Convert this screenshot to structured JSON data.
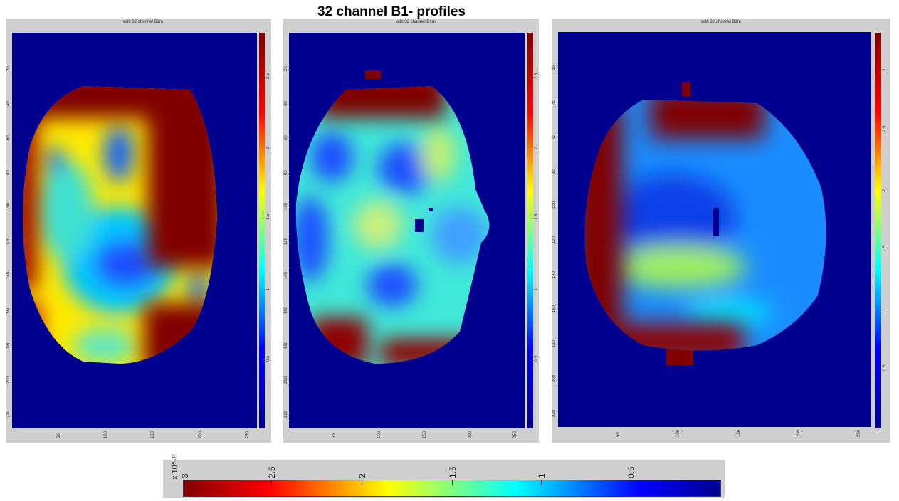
{
  "title": "32 channel B1- profiles",
  "panels": [
    {
      "name": "left",
      "title": "with 32 channel B1m",
      "x_ticks": [
        "50",
        "100",
        "150",
        "200",
        "250"
      ],
      "y_ticks": [
        "20",
        "40",
        "60",
        "80",
        "100",
        "120",
        "140",
        "160",
        "180",
        "200",
        "220"
      ],
      "cbar_ticks": [
        "0.5",
        "1",
        "1.5",
        "2",
        "2.5"
      ],
      "cbar_exp": "x 10^-8"
    },
    {
      "name": "middle",
      "title": "with 32 channel B1m",
      "x_ticks": [
        "50",
        "100",
        "150",
        "200",
        "250"
      ],
      "y_ticks": [
        "20",
        "40",
        "60",
        "80",
        "100",
        "120",
        "140",
        "160",
        "180",
        "200",
        "220"
      ],
      "cbar_ticks": [
        "0.5",
        "1",
        "1.5",
        "2",
        "2.5"
      ],
      "cbar_exp": "x 10^-8"
    },
    {
      "name": "right",
      "title": "with 32 channel B1m",
      "x_ticks": [
        "50",
        "100",
        "150",
        "200",
        "250"
      ],
      "y_ticks": [
        "20",
        "40",
        "60",
        "80",
        "100",
        "120",
        "140",
        "160",
        "180",
        "200",
        "220"
      ],
      "cbar_ticks": [
        "0.5",
        "1",
        "1.5",
        "2",
        "2.5",
        "3"
      ],
      "cbar_exp": "x 10^-8"
    }
  ],
  "colorbar": {
    "exponent": "x 10^-8",
    "tick_labels": [
      "3",
      "2.5",
      "2",
      "1.5",
      "1",
      "0.5"
    ],
    "range": [
      3,
      0
    ],
    "colormap": "jet (dark red at 3 to dark blue at 0)"
  },
  "colors": {
    "background_map": "#00008f",
    "max_map": "#800000",
    "frame_gray": "#cfcfcf"
  }
}
